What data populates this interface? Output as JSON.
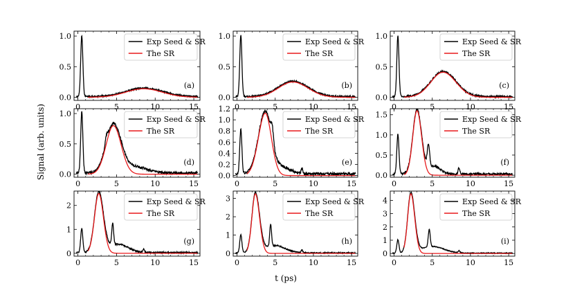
{
  "figure": {
    "xlabel": "t (ps)",
    "ylabel": "Signal (arb. units)"
  },
  "colors": {
    "exp": "#000000",
    "theory": "#e8191b"
  },
  "chart_data": [
    {
      "type": "line",
      "panel": "(a)",
      "xlim": [
        -0.5,
        15.8
      ],
      "ylim": [
        -0.05,
        1.08
      ],
      "xticks": [
        0,
        5,
        10,
        15
      ],
      "yticks": [
        0.0,
        0.5,
        1.0
      ],
      "ytick_labels": [
        "0.0",
        "0.5",
        "1.0"
      ],
      "legend": [
        "Exp Seed & SR",
        "The SR"
      ],
      "seed": {
        "x0": 0.5,
        "h": 1.0,
        "w": 0.14
      },
      "sr": {
        "x0": 8.5,
        "h": 0.14,
        "wL": 2.3,
        "wR": 2.4
      },
      "features": [],
      "noise": 0.012,
      "baseline": 0.012
    },
    {
      "type": "line",
      "panel": "(b)",
      "xlim": [
        -0.5,
        15.8
      ],
      "ylim": [
        -0.05,
        1.08
      ],
      "xticks": [
        0,
        5,
        10,
        15
      ],
      "yticks": [
        0.0,
        0.5,
        1.0
      ],
      "ytick_labels": [
        "0.0",
        "0.5",
        "1.0"
      ],
      "legend": [
        "Exp Seed & SR",
        "The SR"
      ],
      "seed": {
        "x0": 0.5,
        "h": 1.0,
        "w": 0.14
      },
      "sr": {
        "x0": 7.3,
        "h": 0.25,
        "wL": 1.9,
        "wR": 2.0
      },
      "features": [],
      "noise": 0.012,
      "baseline": 0.012
    },
    {
      "type": "line",
      "panel": "(c)",
      "xlim": [
        -0.5,
        15.8
      ],
      "ylim": [
        -0.05,
        1.08
      ],
      "xticks": [
        0,
        5,
        10,
        15
      ],
      "yticks": [
        0.0,
        0.5,
        1.0
      ],
      "ytick_labels": [
        "0.0",
        "0.5",
        "1.0"
      ],
      "legend": [
        "Exp Seed & SR",
        "The SR"
      ],
      "seed": {
        "x0": 0.5,
        "h": 1.0,
        "w": 0.14
      },
      "sr": {
        "x0": 6.4,
        "h": 0.41,
        "wL": 1.6,
        "wR": 1.7
      },
      "features": [],
      "noise": 0.014,
      "baseline": 0.012
    },
    {
      "type": "line",
      "panel": "(d)",
      "xlim": [
        -0.5,
        15.8
      ],
      "ylim": [
        -0.05,
        1.08
      ],
      "xticks": [
        0,
        5,
        10,
        15
      ],
      "yticks": [
        0.0,
        0.5,
        1.0
      ],
      "ytick_labels": [
        "0.0",
        "0.5",
        "1.0"
      ],
      "legend": [
        "Exp Seed & SR",
        "The SR"
      ],
      "seed": {
        "x0": 0.5,
        "h": 1.0,
        "w": 0.14
      },
      "sr": {
        "x0": 4.6,
        "h": 0.8,
        "wL": 0.95,
        "wR": 1.0
      },
      "features": [
        {
          "x0": 3.7,
          "h": 0.12,
          "w": 0.18
        },
        {
          "x0": 7.5,
          "h": 0.1,
          "w": 1.5
        }
      ],
      "noise": 0.02,
      "baseline": 0.02
    },
    {
      "type": "line",
      "panel": "(e)",
      "xlim": [
        -0.5,
        15.8
      ],
      "ylim": [
        -0.03,
        1.2
      ],
      "xticks": [
        0,
        5,
        10,
        15
      ],
      "yticks": [
        0.0,
        0.2,
        0.4,
        0.6,
        0.8,
        1.0,
        1.2
      ],
      "ytick_labels": [
        "0.0",
        "0.2",
        "0.4",
        "0.6",
        "0.8",
        "1.0",
        "1.2"
      ],
      "legend": [
        "Exp Seed & SR",
        "The SR"
      ],
      "seed": {
        "x0": 0.5,
        "h": 0.8,
        "w": 0.14
      },
      "sr": {
        "x0": 3.7,
        "h": 1.12,
        "wL": 0.9,
        "wR": 0.8
      },
      "features": [
        {
          "x0": 4.6,
          "h": 0.25,
          "w": 0.18
        },
        {
          "x0": 6.0,
          "h": 0.12,
          "w": 1.0
        },
        {
          "x0": 8.5,
          "h": 0.1,
          "w": 0.1
        }
      ],
      "noise": 0.025,
      "baseline": 0.03
    },
    {
      "type": "line",
      "panel": "(f)",
      "xlim": [
        -0.5,
        15.8
      ],
      "ylim": [
        -0.05,
        1.65
      ],
      "xticks": [
        0,
        5,
        10,
        15
      ],
      "yticks": [
        0.0,
        0.5,
        1.0,
        1.5
      ],
      "ytick_labels": [
        "0.0",
        "0.5",
        "1.0",
        "1.5"
      ],
      "legend": [
        "Exp Seed & SR",
        "The SR"
      ],
      "seed": {
        "x0": 0.5,
        "h": 1.0,
        "w": 0.14
      },
      "sr": {
        "x0": 3.0,
        "h": 1.6,
        "wL": 0.55,
        "wR": 0.6
      },
      "features": [
        {
          "x0": 4.5,
          "h": 0.55,
          "w": 0.15
        },
        {
          "x0": 5.2,
          "h": 0.2,
          "w": 0.8
        },
        {
          "x0": 8.5,
          "h": 0.15,
          "w": 0.12
        }
      ],
      "noise": 0.025,
      "baseline": 0.03
    },
    {
      "type": "line",
      "panel": "(g)",
      "xlim": [
        -0.5,
        15.8
      ],
      "ylim": [
        -0.12,
        2.6
      ],
      "xticks": [
        0,
        5,
        10,
        15
      ],
      "yticks": [
        0,
        1,
        2
      ],
      "ytick_labels": [
        "0",
        "1",
        "2"
      ],
      "legend": [
        "Exp Seed & SR",
        "The SR"
      ],
      "seed": {
        "x0": 0.5,
        "h": 1.0,
        "w": 0.14
      },
      "sr": {
        "x0": 2.7,
        "h": 2.5,
        "wL": 0.55,
        "wR": 0.6
      },
      "features": [
        {
          "x0": 4.5,
          "h": 0.9,
          "w": 0.12
        },
        {
          "x0": 5.2,
          "h": 0.35,
          "w": 1.3
        },
        {
          "x0": 8.5,
          "h": 0.15,
          "w": 0.1
        }
      ],
      "noise": 0.03,
      "baseline": 0.03
    },
    {
      "type": "line",
      "panel": "(h)",
      "xlim": [
        -0.5,
        15.8
      ],
      "ylim": [
        -0.15,
        3.4
      ],
      "xticks": [
        0,
        5,
        10,
        15
      ],
      "yticks": [
        0,
        1,
        2,
        3
      ],
      "ytick_labels": [
        "0",
        "1",
        "2",
        "3"
      ],
      "legend": [
        "Exp Seed & SR",
        "The SR"
      ],
      "seed": {
        "x0": 0.5,
        "h": 1.0,
        "w": 0.14
      },
      "sr": {
        "x0": 2.4,
        "h": 3.25,
        "wL": 0.45,
        "wR": 0.55
      },
      "features": [
        {
          "x0": 4.4,
          "h": 1.2,
          "w": 0.12
        },
        {
          "x0": 5.0,
          "h": 0.4,
          "w": 1.3
        },
        {
          "x0": 8.5,
          "h": 0.15,
          "w": 0.1
        }
      ],
      "noise": 0.03,
      "baseline": 0.03
    },
    {
      "type": "line",
      "panel": "(i)",
      "xlim": [
        -0.5,
        15.8
      ],
      "ylim": [
        -0.2,
        4.7
      ],
      "xticks": [
        0,
        5,
        10,
        15
      ],
      "yticks": [
        0,
        1,
        2,
        3,
        4
      ],
      "ytick_labels": [
        "0",
        "1",
        "2",
        "3",
        "4"
      ],
      "legend": [
        "Exp Seed & SR",
        "The SR"
      ],
      "seed": {
        "x0": 0.5,
        "h": 1.0,
        "w": 0.14
      },
      "sr": {
        "x0": 2.2,
        "h": 4.5,
        "wL": 0.42,
        "wR": 0.5
      },
      "features": [
        {
          "x0": 4.6,
          "h": 1.3,
          "w": 0.13
        },
        {
          "x0": 5.0,
          "h": 0.5,
          "w": 1.5
        },
        {
          "x0": 8.5,
          "h": 0.15,
          "w": 0.12
        }
      ],
      "noise": 0.03,
      "baseline": 0.03
    }
  ]
}
